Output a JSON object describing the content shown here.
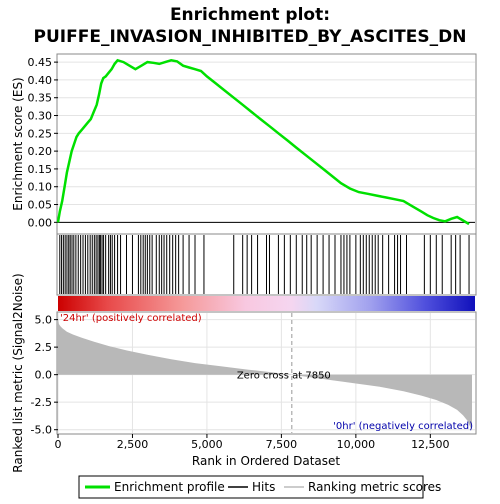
{
  "title_line1": "Enrichment plot:",
  "title_line2": "PUIFFE_INVASION_INHIBITED_BY_ASCITES_DN",
  "legend": {
    "enrichment_profile": "Enrichment profile",
    "hits": "Hits",
    "ranking_metric": "Ranking metric scores"
  },
  "colors": {
    "enrichment_line": "#00e000",
    "hits": "#000000",
    "ranking_fill": "#b8b8b8",
    "positive_label": "#cc0000",
    "negative_label": "#0000aa"
  },
  "chart_data": [
    {
      "type": "line",
      "name": "enrichment-score-panel",
      "ylabel": "Enrichment score (ES)",
      "xlim": [
        0,
        14000
      ],
      "ylim": [
        -0.03,
        0.47
      ],
      "yticks": [
        "0.00",
        "0.05",
        "0.10",
        "0.15",
        "0.20",
        "0.25",
        "0.30",
        "0.35",
        "0.40",
        "0.45"
      ],
      "ytick_values": [
        0.0,
        0.05,
        0.1,
        0.15,
        0.2,
        0.25,
        0.3,
        0.35,
        0.4,
        0.45
      ],
      "grid": true,
      "series": [
        {
          "name": "Enrichment profile",
          "x": [
            0,
            60,
            140,
            220,
            300,
            380,
            460,
            540,
            620,
            700,
            800,
            900,
            1000,
            1100,
            1200,
            1300,
            1380,
            1450,
            1520,
            1600,
            1700,
            1800,
            1900,
            2000,
            2200,
            2400,
            2600,
            2800,
            3000,
            3200,
            3400,
            3600,
            3800,
            4000,
            4200,
            4400,
            4600,
            4800,
            5000,
            5300,
            5600,
            5900,
            6200,
            6500,
            6800,
            7100,
            7400,
            7700,
            8000,
            8300,
            8600,
            8900,
            9200,
            9500,
            9800,
            10100,
            10400,
            10700,
            11000,
            11300,
            11600,
            11900,
            12200,
            12400,
            12600,
            12800,
            13000,
            13200,
            13400,
            13600,
            13800
          ],
          "y": [
            0.0,
            0.03,
            0.06,
            0.1,
            0.14,
            0.17,
            0.2,
            0.22,
            0.24,
            0.25,
            0.26,
            0.27,
            0.28,
            0.29,
            0.31,
            0.33,
            0.36,
            0.39,
            0.405,
            0.41,
            0.42,
            0.43,
            0.445,
            0.455,
            0.45,
            0.44,
            0.43,
            0.44,
            0.45,
            0.448,
            0.445,
            0.45,
            0.455,
            0.452,
            0.44,
            0.435,
            0.43,
            0.425,
            0.41,
            0.39,
            0.37,
            0.35,
            0.33,
            0.31,
            0.29,
            0.27,
            0.25,
            0.23,
            0.21,
            0.19,
            0.17,
            0.15,
            0.13,
            0.11,
            0.095,
            0.085,
            0.08,
            0.075,
            0.07,
            0.065,
            0.06,
            0.045,
            0.03,
            0.02,
            0.012,
            0.006,
            0.003,
            0.01,
            0.015,
            0.005,
            -0.005
          ]
        }
      ]
    },
    {
      "type": "heatmap",
      "name": "hits-panel",
      "series_name": "Hits",
      "xlim": [
        0,
        14000
      ],
      "hits": [
        60,
        120,
        180,
        240,
        300,
        360,
        410,
        470,
        530,
        600,
        680,
        760,
        840,
        920,
        1000,
        1080,
        1150,
        1220,
        1280,
        1340,
        1390,
        1430,
        1480,
        1530,
        1600,
        1700,
        1760,
        1820,
        1900,
        2000,
        2100,
        2300,
        2500,
        2700,
        2780,
        2860,
        2930,
        3000,
        3080,
        3160,
        3300,
        3400,
        3480,
        3560,
        3650,
        3750,
        3850,
        3950,
        4050,
        4200,
        4400,
        4600,
        4900,
        5900,
        6200,
        6350,
        6500,
        6700,
        7000,
        7100,
        7400,
        7600,
        7800,
        8000,
        8200,
        8350,
        8500,
        8700,
        8900,
        9100,
        9300,
        9500,
        9600,
        9700,
        9800,
        10000,
        10150,
        10250,
        10350,
        10450,
        10550,
        10650,
        10750,
        10900,
        11100,
        11300,
        11400,
        11500,
        11700,
        12300,
        12500,
        12700,
        12900,
        13200,
        13350,
        13500,
        13800
      ]
    },
    {
      "type": "area",
      "name": "ranked-list-metric-panel",
      "series_name": "Ranking metric scores",
      "ylabel": "Ranked list metric (Signal2Noise)",
      "xlabel": "Rank in Ordered Dataset",
      "xlim": [
        0,
        14000
      ],
      "ylim": [
        -5.3,
        5.6
      ],
      "yticks": [
        "-5.0",
        "-2.5",
        "0.0",
        "2.5",
        "5.0"
      ],
      "ytick_values": [
        -5.0,
        -2.5,
        0.0,
        2.5,
        5.0
      ],
      "xticks": [
        "0",
        "2,500",
        "5,000",
        "7,500",
        "10,000",
        "12,500"
      ],
      "xtick_values": [
        0,
        2500,
        5000,
        7500,
        10000,
        12500
      ],
      "grid": true,
      "x": [
        0,
        30,
        80,
        150,
        300,
        500,
        800,
        1200,
        1700,
        2300,
        3000,
        3800,
        4600,
        5500,
        6400,
        7200,
        7850,
        8500,
        9200,
        10000,
        10800,
        11600,
        12200,
        12700,
        13100,
        13400,
        13600,
        13750,
        13850,
        13900
      ],
      "values": [
        5.1,
        4.6,
        4.4,
        4.2,
        3.9,
        3.65,
        3.35,
        3.0,
        2.6,
        2.2,
        1.8,
        1.4,
        1.05,
        0.75,
        0.45,
        0.2,
        0.0,
        -0.25,
        -0.5,
        -0.8,
        -1.1,
        -1.5,
        -1.9,
        -2.3,
        -2.75,
        -3.2,
        -3.7,
        -4.2,
        -4.8,
        -5.1
      ],
      "zero_cross_label": "Zero cross at 7850",
      "zero_cross_rank": 7850,
      "positive_label": "'24hr' (positively correlated)",
      "negative_label": "'0hr' (negatively correlated)"
    }
  ]
}
